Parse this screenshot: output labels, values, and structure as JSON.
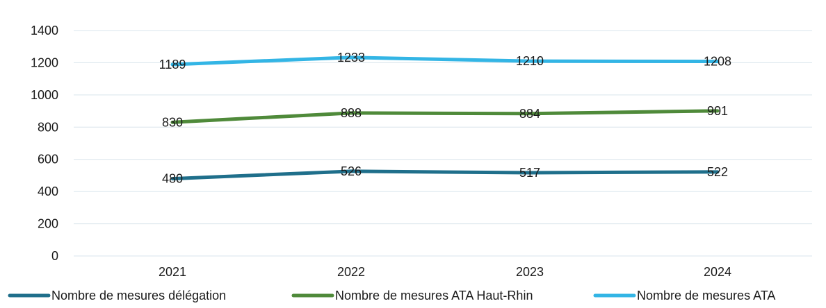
{
  "chart_data": {
    "type": "line",
    "title": "",
    "xlabel": "",
    "ylabel": "",
    "categories": [
      "2021",
      "2022",
      "2023",
      "2024"
    ],
    "ylim": [
      0,
      1400
    ],
    "yticks": [
      0,
      200,
      400,
      600,
      800,
      1000,
      1200,
      1400
    ],
    "grid": true,
    "legend_position": "bottom",
    "series": [
      {
        "name": "Nombre de mesures délégation",
        "values": [
          480,
          526,
          517,
          522
        ],
        "color": "#1f6f8b",
        "labels": [
          "480",
          "526",
          "517",
          "522"
        ]
      },
      {
        "name": "Nombre de mesures ATA Haut-Rhin",
        "values": [
          830,
          888,
          884,
          901
        ],
        "color": "#4f8a3a",
        "labels": [
          "830",
          "888",
          "884",
          "901"
        ]
      },
      {
        "name": "Nombre de mesures ATA",
        "values": [
          1189,
          1233,
          1210,
          1208
        ],
        "color": "#33b5e5",
        "labels": [
          "1189",
          "1233",
          "1210",
          "1208"
        ]
      }
    ]
  }
}
